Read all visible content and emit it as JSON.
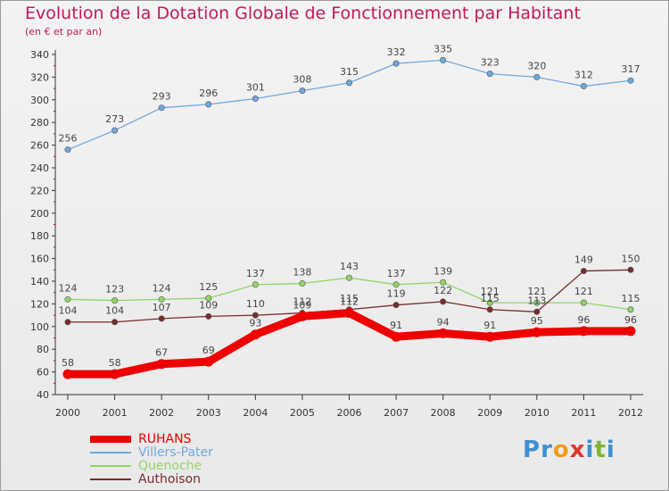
{
  "title": "Evolution de la Dotation Globale de Fonctionnement par Habitant",
  "subtitle": "(en € et par an)",
  "logo": {
    "text": "Proxiti",
    "letters": [
      {
        "ch": "P",
        "color": "#3f8fd0"
      },
      {
        "ch": "r",
        "color": "#3f8fd0"
      },
      {
        "ch": "o",
        "color": "#f29b1c"
      },
      {
        "ch": "x",
        "color": "#e0382b"
      },
      {
        "ch": "i",
        "color": "#3f8fd0"
      },
      {
        "ch": "t",
        "color": "#7ab72e"
      },
      {
        "ch": "i",
        "color": "#3f8fd0"
      }
    ]
  },
  "chart_data": {
    "type": "line",
    "title": "Evolution de la Dotation Globale de Fonctionnement par Habitant",
    "subtitle": "(en € et par an)",
    "xlabel": "",
    "ylabel": "",
    "x": [
      "2000",
      "2001",
      "2002",
      "2003",
      "2004",
      "2005",
      "2006",
      "2007",
      "2008",
      "2009",
      "2010",
      "2011",
      "2012"
    ],
    "ylim": [
      40,
      340
    ],
    "yticks": [
      40,
      60,
      80,
      100,
      120,
      140,
      160,
      180,
      200,
      220,
      240,
      260,
      280,
      300,
      320,
      340
    ],
    "grid": false,
    "legend_position": "bottom-left",
    "series": [
      {
        "name": "RUHANS",
        "color": "#ee0000",
        "values": [
          58,
          58,
          67,
          69,
          93,
          109,
          112,
          91,
          94,
          91,
          95,
          96,
          96
        ]
      },
      {
        "name": "Villers-Pater",
        "color": "#6fa8dc",
        "values": [
          256,
          273,
          293,
          296,
          301,
          308,
          315,
          332,
          335,
          323,
          320,
          312,
          317
        ]
      },
      {
        "name": "Quenoche",
        "color": "#93d566",
        "values": [
          124,
          123,
          124,
          125,
          137,
          138,
          143,
          137,
          139,
          121,
          121,
          121,
          115
        ]
      },
      {
        "name": "Authoison",
        "color": "#7a2b2b",
        "values": [
          104,
          104,
          107,
          109,
          110,
          112,
          115,
          119,
          122,
          115,
          113,
          149,
          150
        ]
      }
    ]
  }
}
